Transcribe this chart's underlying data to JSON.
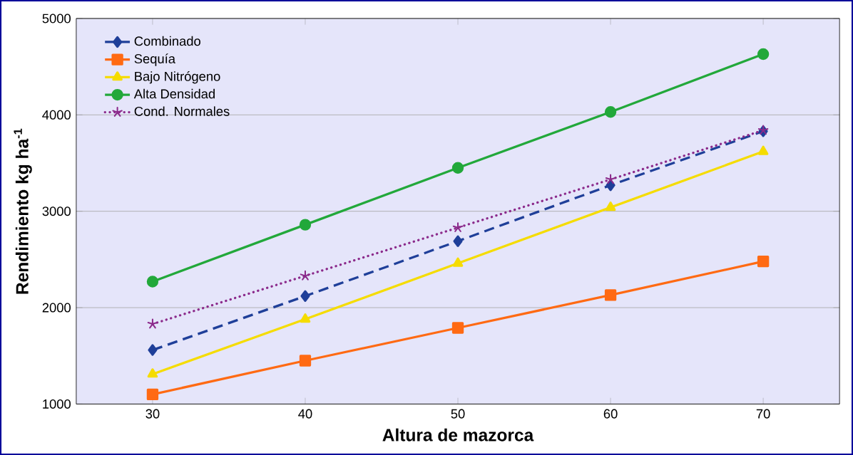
{
  "chart_data": {
    "type": "line",
    "xlabel": "Altura de mazorca",
    "ylabel": "Rendimiento kg ha$^{-1}$",
    "categories": [
      "30",
      "40",
      "50",
      "60",
      "70"
    ],
    "ylim": [
      1000,
      5000
    ],
    "yticks": [
      1000,
      2000,
      3000,
      4000,
      5000
    ],
    "grid": "y",
    "legend": "top left",
    "series": [
      {
        "name": "Combinado",
        "color": "#1f3f99",
        "marker": "diamond",
        "line_style": "dashed",
        "values": [
          1560,
          2120,
          2690,
          3270,
          3830
        ]
      },
      {
        "name": "Sequía",
        "color": "#ff6a13",
        "marker": "square",
        "line_style": "solid",
        "values": [
          1100,
          1450,
          1790,
          2130,
          2480
        ]
      },
      {
        "name": "Bajo Nitrógeno",
        "color": "#f5dc00",
        "marker": "triangle",
        "line_style": "solid",
        "values": [
          1310,
          1880,
          2460,
          3040,
          3620
        ]
      },
      {
        "name": "Alta Densidad",
        "color": "#22a83a",
        "marker": "circle",
        "line_style": "solid",
        "values": [
          2270,
          2860,
          3450,
          4030,
          4630
        ]
      },
      {
        "name": "Cond. Normales",
        "color": "#8b2a8b",
        "marker": "cross",
        "line_style": "dotted",
        "values": [
          1830,
          2330,
          2830,
          3330,
          3840
        ]
      }
    ]
  }
}
